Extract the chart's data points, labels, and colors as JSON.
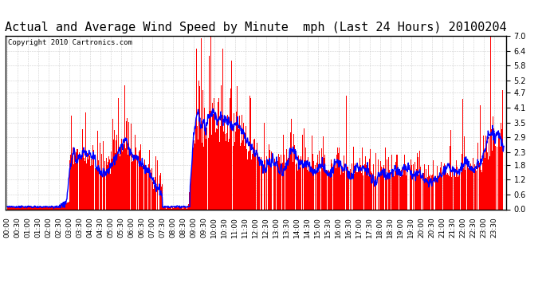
{
  "title": "Actual and Average Wind Speed by Minute  mph (Last 24 Hours) 20100204",
  "copyright": "Copyright 2010 Cartronics.com",
  "yticks": [
    0.0,
    0.6,
    1.2,
    1.8,
    2.3,
    2.9,
    3.5,
    4.1,
    4.7,
    5.2,
    5.8,
    6.4,
    7.0
  ],
  "ymax": 7.0,
  "ymin": 0.0,
  "bar_color": "#FF0000",
  "line_color": "#0000FF",
  "background_color": "#FFFFFF",
  "grid_color": "#BBBBBB",
  "title_fontsize": 11,
  "copyright_fontsize": 6.5,
  "tick_fontsize": 7
}
